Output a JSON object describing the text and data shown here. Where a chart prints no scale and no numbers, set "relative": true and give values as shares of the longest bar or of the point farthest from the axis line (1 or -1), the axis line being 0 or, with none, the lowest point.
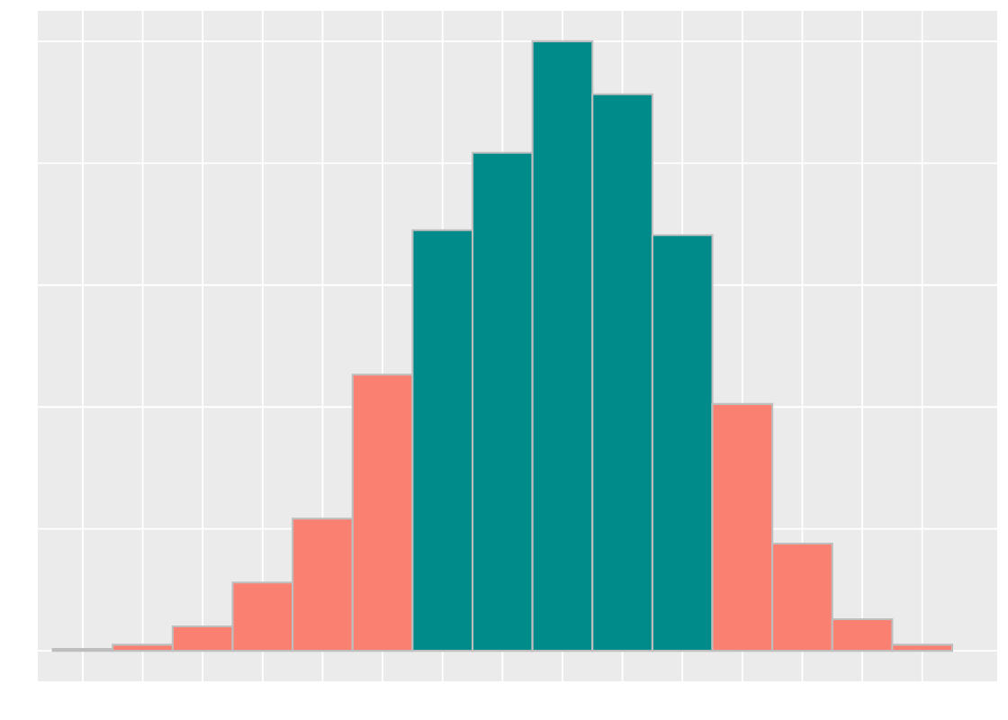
{
  "chart_data": {
    "type": "bar",
    "relative": true,
    "categories": [
      null,
      null,
      null,
      null,
      null,
      null,
      null,
      null,
      null,
      null,
      null,
      null,
      null,
      null,
      null
    ],
    "values": [
      0.003,
      0.01,
      0.04,
      0.112,
      0.217,
      0.453,
      0.69,
      0.817,
      1,
      0.913,
      0.682,
      0.405,
      0.176,
      0.052,
      0.01
    ],
    "colors": [
      "#fa8072",
      "#fa8072",
      "#fa8072",
      "#fa8072",
      "#fa8072",
      "#fa8072",
      "#008b8b",
      "#008b8b",
      "#008b8b",
      "#008b8b",
      "#008b8b",
      "#fa8072",
      "#fa8072",
      "#fa8072",
      "#fa8072"
    ],
    "grid": true
  }
}
